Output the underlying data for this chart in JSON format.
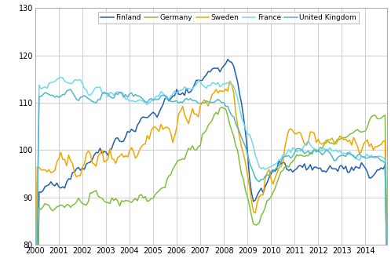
{
  "ylim": [
    80,
    130
  ],
  "xlim": [
    2000,
    2014.92
  ],
  "yticks": [
    80,
    90,
    100,
    110,
    120,
    130
  ],
  "xticks": [
    2000,
    2001,
    2002,
    2003,
    2004,
    2005,
    2006,
    2007,
    2008,
    2009,
    2010,
    2011,
    2012,
    2013,
    2014
  ],
  "colors": {
    "Finland": "#2060a8",
    "Germany": "#80c040",
    "Sweden": "#f0a800",
    "France": "#70d8f8",
    "United_Kingdom": "#50b8c8"
  },
  "legend_labels": [
    "Finland",
    "Germany",
    "Sweden",
    "France",
    "United Kingdom"
  ],
  "background_color": "#ffffff",
  "grid_color": "#c8c8c8"
}
